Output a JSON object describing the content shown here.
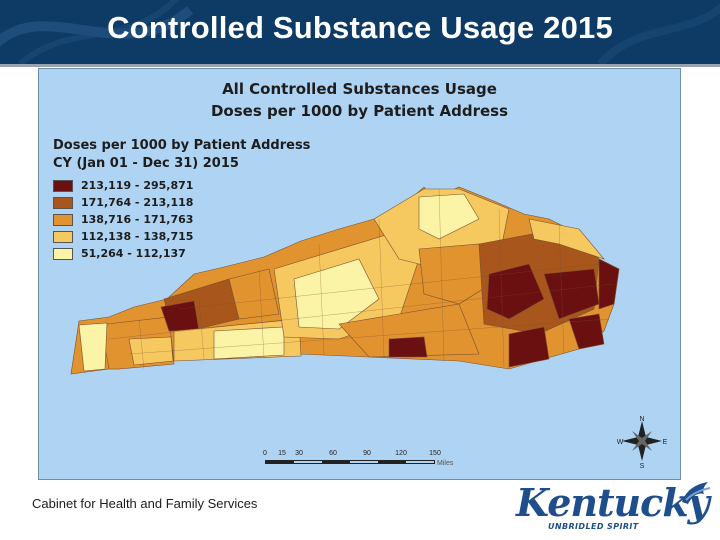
{
  "slide": {
    "title": "Controlled Substance Usage 2015",
    "footer": "Cabinet for Health and Family Services"
  },
  "logo": {
    "wordmark": "Kentucky",
    "tagline": "UNBRIDLED SPIRIT"
  },
  "map": {
    "title_line1": "All Controlled Substances Usage",
    "title_line2": "Doses per 1000 by Patient Address",
    "legend": {
      "heading_line1": "Doses per 1000 by Patient Address",
      "heading_line2": "CY (Jan 01 - Dec 31) 2015",
      "classes": [
        {
          "label": "213,119 - 295,871",
          "color": "#6b1010"
        },
        {
          "label": "171,764 - 213,118",
          "color": "#a8561c"
        },
        {
          "label": "138,716 - 171,763",
          "color": "#e0932e"
        },
        {
          "label": "112,138 - 138,715",
          "color": "#f6c860"
        },
        {
          "label": "51,264 - 112,137",
          "color": "#fbf3a6"
        }
      ]
    },
    "scale": {
      "ticks": [
        "0",
        "15",
        "30",
        "60",
        "90",
        "120",
        "150"
      ],
      "unit": "Miles"
    },
    "compass": {
      "n": "N",
      "s": "S",
      "e": "E",
      "w": "W"
    },
    "water_color": "#afd3f2"
  }
}
